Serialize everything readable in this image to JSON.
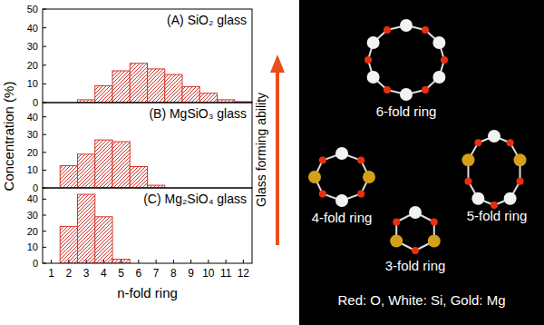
{
  "chart_data": [
    {
      "type": "bar",
      "title": "(A) SiO₂ glass",
      "x": [
        3,
        4,
        5,
        6,
        7,
        8,
        9,
        10,
        11,
        12
      ],
      "values": [
        1.5,
        9,
        17,
        21,
        18,
        15,
        8.5,
        5,
        1.5,
        0.5
      ],
      "color": "#d0362b",
      "xlim": [
        0.5,
        12.5
      ],
      "ylim": [
        0,
        50
      ],
      "yticks": [
        0,
        10,
        20,
        30,
        40,
        50
      ],
      "tick_labels": "y",
      "grid": false
    },
    {
      "type": "bar",
      "title": "(B) MgSiO₃ glass",
      "x": [
        2,
        3,
        4,
        5,
        6,
        7
      ],
      "values": [
        12.5,
        19,
        27,
        26,
        12,
        1.5
      ],
      "color": "#d0362b",
      "xlim": [
        0.5,
        12.5
      ],
      "ylim": [
        0,
        48
      ],
      "yticks": [
        0,
        10,
        20,
        30,
        40
      ],
      "tick_labels": "y",
      "grid": false
    },
    {
      "type": "bar",
      "title": "(C) Mg₂SiO₄ glass",
      "x": [
        2,
        3,
        4,
        5
      ],
      "values": [
        23,
        43,
        29,
        2.5
      ],
      "color": "#d0362b",
      "xlim": [
        0.5,
        12.5
      ],
      "ylim": [
        0,
        47
      ],
      "yticks": [
        0,
        10,
        20,
        30,
        40
      ],
      "xticks": [
        1,
        2,
        3,
        4,
        5,
        6,
        7,
        8,
        9,
        10,
        11,
        12
      ],
      "x_label": "n-fold ring",
      "grid": false
    }
  ],
  "figure": {
    "y_label": "Concentration (%)",
    "arrow_label": "Glass forming ability"
  },
  "diagram": {
    "rings": [
      {
        "label": "6-fold ring"
      },
      {
        "label": "4-fold ring"
      },
      {
        "label": "5-fold ring"
      },
      {
        "label": "3-fold ring"
      }
    ],
    "key_text": "Red: O, White: Si, Gold: Mg"
  }
}
